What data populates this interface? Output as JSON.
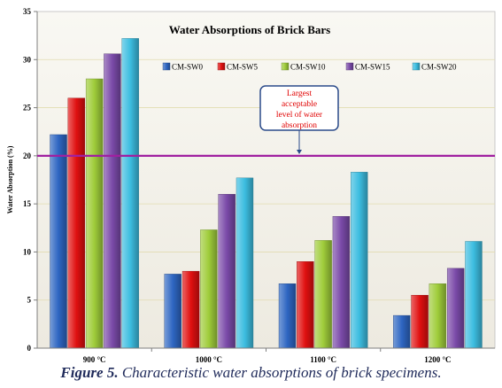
{
  "chart_data": {
    "type": "bar",
    "title": "Water Absorptions of Brick Bars",
    "ylabel": "Water  Absorption (%)",
    "ylim": [
      0,
      35
    ],
    "yticks": [
      0,
      5,
      10,
      15,
      20,
      25,
      30,
      35
    ],
    "categories": [
      "900 °C",
      "1000 °C",
      "1100 °C",
      "1200 °C"
    ],
    "series": [
      {
        "name": "CM-SW0",
        "color": "#2e66c2",
        "values": [
          22.2,
          7.7,
          6.7,
          3.4
        ]
      },
      {
        "name": "CM-SW5",
        "color": "#e01010",
        "values": [
          26.0,
          8.0,
          9.0,
          5.5
        ]
      },
      {
        "name": "CM-SW10",
        "color": "#9fcc3a",
        "values": [
          28.0,
          12.3,
          11.2,
          6.7
        ]
      },
      {
        "name": "CM-SW15",
        "color": "#7a4aa8",
        "values": [
          30.6,
          16.0,
          13.7,
          8.3
        ]
      },
      {
        "name": "CM-SW20",
        "color": "#3cbde0",
        "values": [
          32.2,
          17.7,
          18.3,
          11.1
        ]
      }
    ],
    "reference_line": {
      "value": 20,
      "color": "#a020a0"
    },
    "annotation": [
      "Largest",
      "acceptable",
      "level of water",
      "absorption"
    ],
    "grid": true,
    "legend_placement": "top"
  },
  "caption": {
    "label": "Figure 5.",
    "text": "Characteristic water absorptions of brick specimens."
  }
}
